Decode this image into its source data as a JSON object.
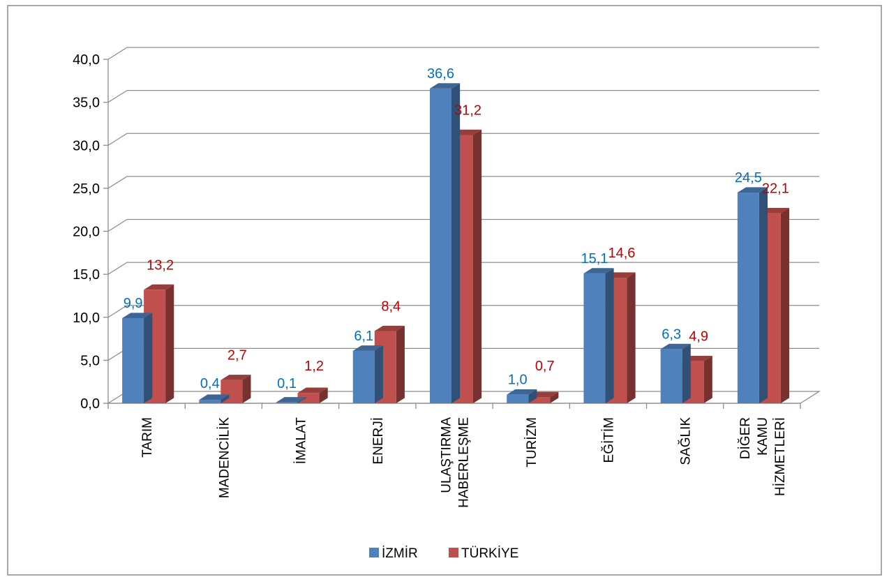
{
  "chart_data": {
    "type": "bar",
    "categories": [
      [
        "TARIM"
      ],
      [
        "MADENCİLİK"
      ],
      [
        "İMALAT"
      ],
      [
        "ENERJİ"
      ],
      [
        "ULAŞTIRMA",
        "HABERLEŞME"
      ],
      [
        "TURİZM"
      ],
      [
        "EĞİTİM"
      ],
      [
        "SAĞLIK"
      ],
      [
        "DİĞER",
        "KAMU",
        "HİZMETLERİ"
      ]
    ],
    "series": [
      {
        "name": "İZMİR",
        "values": [
          9.9,
          0.4,
          0.1,
          6.1,
          36.6,
          1.0,
          15.1,
          6.3,
          24.5
        ],
        "labels": [
          "9,9",
          "0,4",
          "0,1",
          "6,1",
          "36,6",
          "1,0",
          "15,1",
          "6,3",
          "24,5"
        ],
        "color": "#4F81BD",
        "label_color": "#0070C0"
      },
      {
        "name": "TÜRKİYE",
        "values": [
          13.2,
          2.7,
          1.2,
          8.4,
          31.2,
          0.7,
          14.6,
          4.9,
          22.1
        ],
        "labels": [
          "13,2",
          "2,7",
          "1,2",
          "8,4",
          "31,2",
          "0,7",
          "14,6",
          "4,9",
          "22,1"
        ],
        "color": "#C0504D",
        "label_color": "#C00000"
      }
    ],
    "ylim": [
      0,
      40
    ],
    "yticks": [
      "0,0",
      "5,0",
      "10,0",
      "15,0",
      "20,0",
      "25,0",
      "30,0",
      "35,0",
      "40,0"
    ],
    "grid": true,
    "legend_position": "bottom",
    "three_d": true
  }
}
